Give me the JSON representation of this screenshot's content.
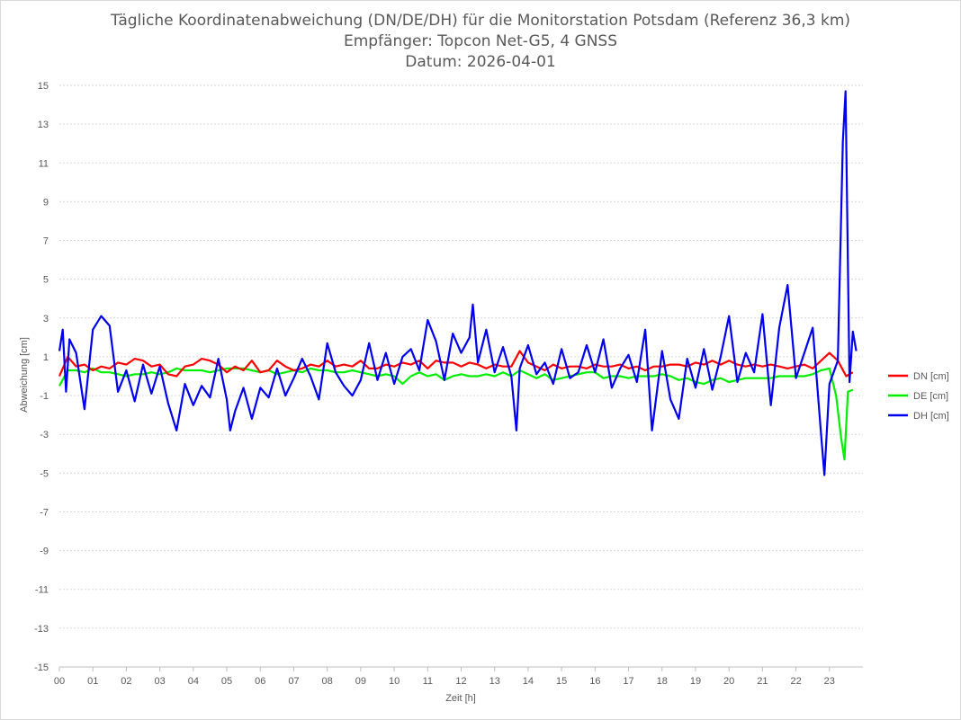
{
  "chart_data": {
    "type": "line",
    "title": [
      "Tägliche Koordinatenabweichung (DN/DE/DH) für die Monitorstation Potsdam (Referenz 36,3 km)",
      "Empfänger: Topcon Net-G5, 4 GNSS",
      "Datum: 2026-04-01"
    ],
    "xlabel": "Zeit [h]",
    "ylabel": "Abweichung [cm]",
    "xlim": [
      0,
      24
    ],
    "ylim": [
      -15,
      15
    ],
    "xticks": [
      "00",
      "01",
      "02",
      "03",
      "04",
      "05",
      "06",
      "07",
      "08",
      "09",
      "10",
      "11",
      "12",
      "13",
      "14",
      "15",
      "16",
      "17",
      "18",
      "19",
      "20",
      "21",
      "22",
      "23"
    ],
    "yticks": [
      15,
      13,
      11,
      9,
      7,
      5,
      3,
      1,
      -1,
      -3,
      -5,
      -7,
      -9,
      -11,
      -13,
      -15
    ],
    "grid": "horizontal dotted",
    "legend_position": "right",
    "series": [
      {
        "name": "DN [cm]",
        "color": "#ff0000",
        "points": [
          [
            0.0,
            0.0
          ],
          [
            0.25,
            1.0
          ],
          [
            0.5,
            0.5
          ],
          [
            0.75,
            0.6
          ],
          [
            1.0,
            0.3
          ],
          [
            1.25,
            0.5
          ],
          [
            1.5,
            0.4
          ],
          [
            1.75,
            0.7
          ],
          [
            2.0,
            0.6
          ],
          [
            2.25,
            0.9
          ],
          [
            2.5,
            0.8
          ],
          [
            2.75,
            0.5
          ],
          [
            3.0,
            0.6
          ],
          [
            3.25,
            0.1
          ],
          [
            3.5,
            0.0
          ],
          [
            3.75,
            0.5
          ],
          [
            4.0,
            0.6
          ],
          [
            4.25,
            0.9
          ],
          [
            4.5,
            0.8
          ],
          [
            4.75,
            0.6
          ],
          [
            5.0,
            0.2
          ],
          [
            5.25,
            0.5
          ],
          [
            5.5,
            0.3
          ],
          [
            5.75,
            0.8
          ],
          [
            6.0,
            0.2
          ],
          [
            6.25,
            0.3
          ],
          [
            6.5,
            0.8
          ],
          [
            6.75,
            0.5
          ],
          [
            7.0,
            0.3
          ],
          [
            7.25,
            0.4
          ],
          [
            7.5,
            0.6
          ],
          [
            7.75,
            0.5
          ],
          [
            8.0,
            0.8
          ],
          [
            8.25,
            0.5
          ],
          [
            8.5,
            0.6
          ],
          [
            8.75,
            0.5
          ],
          [
            9.0,
            0.8
          ],
          [
            9.25,
            0.4
          ],
          [
            9.5,
            0.4
          ],
          [
            9.75,
            0.6
          ],
          [
            10.0,
            0.5
          ],
          [
            10.25,
            0.7
          ],
          [
            10.5,
            0.6
          ],
          [
            10.75,
            0.8
          ],
          [
            11.0,
            0.4
          ],
          [
            11.25,
            0.8
          ],
          [
            11.5,
            0.7
          ],
          [
            11.75,
            0.7
          ],
          [
            12.0,
            0.5
          ],
          [
            12.25,
            0.7
          ],
          [
            12.5,
            0.6
          ],
          [
            12.75,
            0.4
          ],
          [
            13.0,
            0.6
          ],
          [
            13.25,
            0.5
          ],
          [
            13.5,
            0.5
          ],
          [
            13.75,
            1.3
          ],
          [
            14.0,
            0.7
          ],
          [
            14.25,
            0.5
          ],
          [
            14.5,
            0.3
          ],
          [
            14.75,
            0.6
          ],
          [
            15.0,
            0.4
          ],
          [
            15.25,
            0.5
          ],
          [
            15.5,
            0.5
          ],
          [
            15.75,
            0.4
          ],
          [
            16.0,
            0.6
          ],
          [
            16.25,
            0.5
          ],
          [
            16.5,
            0.5
          ],
          [
            16.75,
            0.6
          ],
          [
            17.0,
            0.4
          ],
          [
            17.25,
            0.5
          ],
          [
            17.5,
            0.3
          ],
          [
            17.75,
            0.5
          ],
          [
            18.0,
            0.5
          ],
          [
            18.25,
            0.6
          ],
          [
            18.5,
            0.6
          ],
          [
            18.75,
            0.5
          ],
          [
            19.0,
            0.7
          ],
          [
            19.25,
            0.6
          ],
          [
            19.5,
            0.8
          ],
          [
            19.75,
            0.6
          ],
          [
            20.0,
            0.8
          ],
          [
            20.25,
            0.6
          ],
          [
            20.5,
            0.5
          ],
          [
            20.75,
            0.6
          ],
          [
            21.0,
            0.5
          ],
          [
            21.25,
            0.6
          ],
          [
            21.5,
            0.5
          ],
          [
            21.75,
            0.4
          ],
          [
            22.0,
            0.5
          ],
          [
            22.25,
            0.6
          ],
          [
            22.5,
            0.4
          ],
          [
            22.75,
            0.8
          ],
          [
            23.0,
            1.2
          ],
          [
            23.25,
            0.8
          ],
          [
            23.5,
            0.0
          ],
          [
            23.7,
            0.2
          ]
        ]
      },
      {
        "name": "DE [cm]",
        "color": "#00ee00",
        "points": [
          [
            0.0,
            -0.5
          ],
          [
            0.25,
            0.3
          ],
          [
            0.5,
            0.3
          ],
          [
            0.75,
            0.2
          ],
          [
            1.0,
            0.4
          ],
          [
            1.25,
            0.2
          ],
          [
            1.5,
            0.2
          ],
          [
            1.75,
            0.1
          ],
          [
            2.0,
            0.0
          ],
          [
            2.25,
            0.1
          ],
          [
            2.5,
            0.1
          ],
          [
            2.75,
            0.2
          ],
          [
            3.0,
            0.1
          ],
          [
            3.25,
            0.2
          ],
          [
            3.5,
            0.4
          ],
          [
            3.75,
            0.3
          ],
          [
            4.0,
            0.3
          ],
          [
            4.25,
            0.3
          ],
          [
            4.5,
            0.2
          ],
          [
            4.75,
            0.3
          ],
          [
            5.0,
            0.4
          ],
          [
            5.25,
            0.4
          ],
          [
            5.5,
            0.4
          ],
          [
            5.75,
            0.3
          ],
          [
            6.0,
            0.2
          ],
          [
            6.25,
            0.3
          ],
          [
            6.5,
            0.1
          ],
          [
            6.75,
            0.2
          ],
          [
            7.0,
            0.3
          ],
          [
            7.25,
            0.2
          ],
          [
            7.5,
            0.4
          ],
          [
            7.75,
            0.3
          ],
          [
            8.0,
            0.3
          ],
          [
            8.25,
            0.2
          ],
          [
            8.5,
            0.2
          ],
          [
            8.75,
            0.3
          ],
          [
            9.0,
            0.2
          ],
          [
            9.25,
            0.1
          ],
          [
            9.5,
            0.0
          ],
          [
            9.75,
            0.1
          ],
          [
            10.0,
            0.0
          ],
          [
            10.25,
            -0.4
          ],
          [
            10.5,
            0.0
          ],
          [
            10.75,
            0.2
          ],
          [
            11.0,
            0.0
          ],
          [
            11.25,
            0.1
          ],
          [
            11.5,
            -0.2
          ],
          [
            11.75,
            0.0
          ],
          [
            12.0,
            0.1
          ],
          [
            12.25,
            0.0
          ],
          [
            12.5,
            0.0
          ],
          [
            12.75,
            0.1
          ],
          [
            13.0,
            0.0
          ],
          [
            13.25,
            0.2
          ],
          [
            13.5,
            0.0
          ],
          [
            13.75,
            0.3
          ],
          [
            14.0,
            0.1
          ],
          [
            14.25,
            -0.1
          ],
          [
            14.5,
            0.1
          ],
          [
            14.75,
            -0.2
          ],
          [
            15.0,
            -0.1
          ],
          [
            15.25,
            0.0
          ],
          [
            15.5,
            0.1
          ],
          [
            15.75,
            0.2
          ],
          [
            16.0,
            0.2
          ],
          [
            16.25,
            -0.1
          ],
          [
            16.5,
            0.0
          ],
          [
            16.75,
            0.0
          ],
          [
            17.0,
            -0.1
          ],
          [
            17.25,
            0.0
          ],
          [
            17.5,
            0.0
          ],
          [
            17.75,
            0.0
          ],
          [
            18.0,
            0.1
          ],
          [
            18.25,
            0.0
          ],
          [
            18.5,
            -0.2
          ],
          [
            18.75,
            -0.1
          ],
          [
            19.0,
            -0.3
          ],
          [
            19.25,
            -0.4
          ],
          [
            19.5,
            -0.2
          ],
          [
            19.75,
            -0.1
          ],
          [
            20.0,
            -0.3
          ],
          [
            20.25,
            -0.2
          ],
          [
            20.5,
            -0.1
          ],
          [
            20.75,
            -0.1
          ],
          [
            21.0,
            -0.1
          ],
          [
            21.25,
            -0.1
          ],
          [
            21.5,
            0.0
          ],
          [
            21.75,
            0.0
          ],
          [
            22.0,
            0.0
          ],
          [
            22.25,
            0.0
          ],
          [
            22.5,
            0.1
          ],
          [
            22.75,
            0.3
          ],
          [
            23.0,
            0.4
          ],
          [
            23.2,
            -1.0
          ],
          [
            23.35,
            -3.2
          ],
          [
            23.45,
            -4.3
          ],
          [
            23.55,
            -0.8
          ],
          [
            23.7,
            -0.7
          ]
        ]
      },
      {
        "name": "DH [cm]",
        "color": "#0000ee",
        "points": [
          [
            0.0,
            1.3
          ],
          [
            0.1,
            2.4
          ],
          [
            0.2,
            -0.8
          ],
          [
            0.3,
            1.9
          ],
          [
            0.5,
            1.2
          ],
          [
            0.75,
            -1.7
          ],
          [
            1.0,
            2.4
          ],
          [
            1.25,
            3.1
          ],
          [
            1.5,
            2.6
          ],
          [
            1.75,
            -0.8
          ],
          [
            2.0,
            0.3
          ],
          [
            2.25,
            -1.3
          ],
          [
            2.5,
            0.6
          ],
          [
            2.75,
            -0.9
          ],
          [
            3.0,
            0.5
          ],
          [
            3.25,
            -1.4
          ],
          [
            3.5,
            -2.8
          ],
          [
            3.75,
            -0.4
          ],
          [
            4.0,
            -1.5
          ],
          [
            4.25,
            -0.5
          ],
          [
            4.5,
            -1.1
          ],
          [
            4.75,
            0.9
          ],
          [
            5.0,
            -1.2
          ],
          [
            5.1,
            -2.8
          ],
          [
            5.25,
            -1.8
          ],
          [
            5.5,
            -0.6
          ],
          [
            5.75,
            -2.2
          ],
          [
            6.0,
            -0.6
          ],
          [
            6.25,
            -1.1
          ],
          [
            6.5,
            0.4
          ],
          [
            6.75,
            -1.0
          ],
          [
            7.0,
            -0.1
          ],
          [
            7.25,
            0.9
          ],
          [
            7.5,
            0.0
          ],
          [
            7.75,
            -1.2
          ],
          [
            8.0,
            1.7
          ],
          [
            8.25,
            0.2
          ],
          [
            8.5,
            -0.5
          ],
          [
            8.75,
            -1.0
          ],
          [
            9.0,
            -0.2
          ],
          [
            9.25,
            1.7
          ],
          [
            9.5,
            -0.2
          ],
          [
            9.75,
            1.2
          ],
          [
            10.0,
            -0.4
          ],
          [
            10.25,
            1.0
          ],
          [
            10.5,
            1.4
          ],
          [
            10.75,
            0.3
          ],
          [
            11.0,
            2.9
          ],
          [
            11.25,
            1.8
          ],
          [
            11.5,
            -0.2
          ],
          [
            11.75,
            2.2
          ],
          [
            12.0,
            1.2
          ],
          [
            12.25,
            2.0
          ],
          [
            12.35,
            3.7
          ],
          [
            12.5,
            0.7
          ],
          [
            12.75,
            2.4
          ],
          [
            13.0,
            0.2
          ],
          [
            13.25,
            1.5
          ],
          [
            13.5,
            0.0
          ],
          [
            13.65,
            -2.8
          ],
          [
            13.75,
            0.4
          ],
          [
            14.0,
            1.6
          ],
          [
            14.25,
            0.1
          ],
          [
            14.5,
            0.7
          ],
          [
            14.75,
            -0.4
          ],
          [
            15.0,
            1.4
          ],
          [
            15.25,
            -0.1
          ],
          [
            15.5,
            0.2
          ],
          [
            15.75,
            1.6
          ],
          [
            16.0,
            0.2
          ],
          [
            16.25,
            1.9
          ],
          [
            16.5,
            -0.6
          ],
          [
            16.75,
            0.4
          ],
          [
            17.0,
            1.1
          ],
          [
            17.25,
            -0.3
          ],
          [
            17.5,
            2.4
          ],
          [
            17.7,
            -2.8
          ],
          [
            18.0,
            1.3
          ],
          [
            18.25,
            -1.2
          ],
          [
            18.5,
            -2.2
          ],
          [
            18.75,
            0.9
          ],
          [
            19.0,
            -0.6
          ],
          [
            19.25,
            1.4
          ],
          [
            19.5,
            -0.7
          ],
          [
            19.75,
            1.0
          ],
          [
            20.0,
            3.1
          ],
          [
            20.25,
            -0.3
          ],
          [
            20.5,
            1.2
          ],
          [
            20.75,
            0.2
          ],
          [
            21.0,
            3.2
          ],
          [
            21.25,
            -1.5
          ],
          [
            21.5,
            2.5
          ],
          [
            21.75,
            4.7
          ],
          [
            22.0,
            -0.1
          ],
          [
            22.25,
            1.2
          ],
          [
            22.5,
            2.5
          ],
          [
            22.75,
            -3.0
          ],
          [
            22.85,
            -5.1
          ],
          [
            23.0,
            -0.4
          ],
          [
            23.25,
            0.8
          ],
          [
            23.4,
            12.1
          ],
          [
            23.48,
            14.7
          ],
          [
            23.6,
            -0.3
          ],
          [
            23.7,
            2.3
          ],
          [
            23.8,
            1.3
          ]
        ]
      }
    ]
  }
}
